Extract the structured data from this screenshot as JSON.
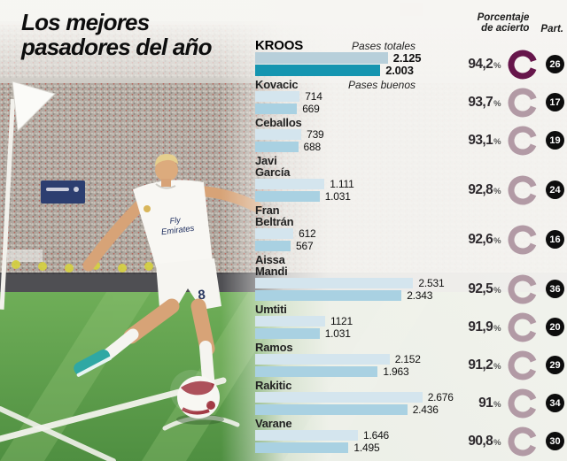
{
  "title": {
    "line1": "Los mejores",
    "line2": "pasadores del año"
  },
  "header": {
    "accuracy_line1": "Porcentaje",
    "accuracy_line2": "de acierto",
    "participation": "Part."
  },
  "photo": {
    "shirt_line1": "Fly",
    "shirt_line2": "Emirates",
    "shirt_number": "8"
  },
  "chart_data": {
    "type": "bar",
    "orientation": "horizontal",
    "title": "Los mejores pasadores del año",
    "series_labels": {
      "total": "Pases totales",
      "good": "Pases buenos"
    },
    "pct_sign": "%",
    "columns": {
      "accuracy": "Porcentaje de acierto",
      "participation": "Part."
    },
    "players": [
      {
        "name": "KROOS",
        "highlight": true,
        "total": 2125,
        "total_label": "2.125",
        "good": 2003,
        "good_label": "2.003",
        "accuracy_pct": 94.2,
        "accuracy_label": "94,2",
        "part": "26"
      },
      {
        "name": "Kovacic",
        "total": 714,
        "total_label": "714",
        "good": 669,
        "good_label": "669",
        "accuracy_pct": 93.7,
        "accuracy_label": "93,7",
        "part": "17"
      },
      {
        "name": "Ceballos",
        "total": 739,
        "total_label": "739",
        "good": 688,
        "good_label": "688",
        "accuracy_pct": 93.1,
        "accuracy_label": "93,1",
        "part": "19"
      },
      {
        "name": "Javi García",
        "name_lines": [
          "Javi",
          "García"
        ],
        "total": 1111,
        "total_label": "1.111",
        "good": 1031,
        "good_label": "1.031",
        "accuracy_pct": 92.8,
        "accuracy_label": "92,8",
        "part": "24"
      },
      {
        "name": "Fran Beltrán",
        "name_lines": [
          "Fran",
          "Beltrán"
        ],
        "total": 612,
        "total_label": "612",
        "good": 567,
        "good_label": "567",
        "accuracy_pct": 92.6,
        "accuracy_label": "92,6",
        "part": "16"
      },
      {
        "name": "Aissa Mandi",
        "name_lines": [
          "Aissa",
          "Mandi"
        ],
        "total": 2531,
        "total_label": "2.531",
        "good": 2343,
        "good_label": "2.343",
        "accuracy_pct": 92.5,
        "accuracy_label": "92,5",
        "part": "36"
      },
      {
        "name": "Umtiti",
        "total": 1121,
        "total_label": "1121",
        "good": 1031,
        "good_label": "1.031",
        "accuracy_pct": 91.9,
        "accuracy_label": "91,9",
        "part": "20"
      },
      {
        "name": "Ramos",
        "total": 2152,
        "total_label": "2.152",
        "good": 1963,
        "good_label": "1.963",
        "accuracy_pct": 91.2,
        "accuracy_label": "91,2",
        "part": "29"
      },
      {
        "name": "Rakitic",
        "total": 2676,
        "total_label": "2.676",
        "good": 2436,
        "good_label": "2.436",
        "accuracy_pct": 91.0,
        "accuracy_label": "91",
        "part": "34"
      },
      {
        "name": "Varane",
        "total": 1646,
        "total_label": "1.646",
        "good": 1495,
        "good_label": "1.495",
        "accuracy_pct": 90.8,
        "accuracy_label": "90,8",
        "part": "30"
      }
    ],
    "colors": {
      "bar_total": "#d4e5ee",
      "bar_good": "#a9d1e2",
      "bar_total_highlight": "#b7cfda",
      "bar_good_highlight": "#1595b0",
      "donut": "#b29aa5",
      "donut_highlight": "#66164b",
      "badge_bg": "#0d0d0d",
      "grass": "#6fae58",
      "boot_teal": "#2fa8a4"
    }
  }
}
